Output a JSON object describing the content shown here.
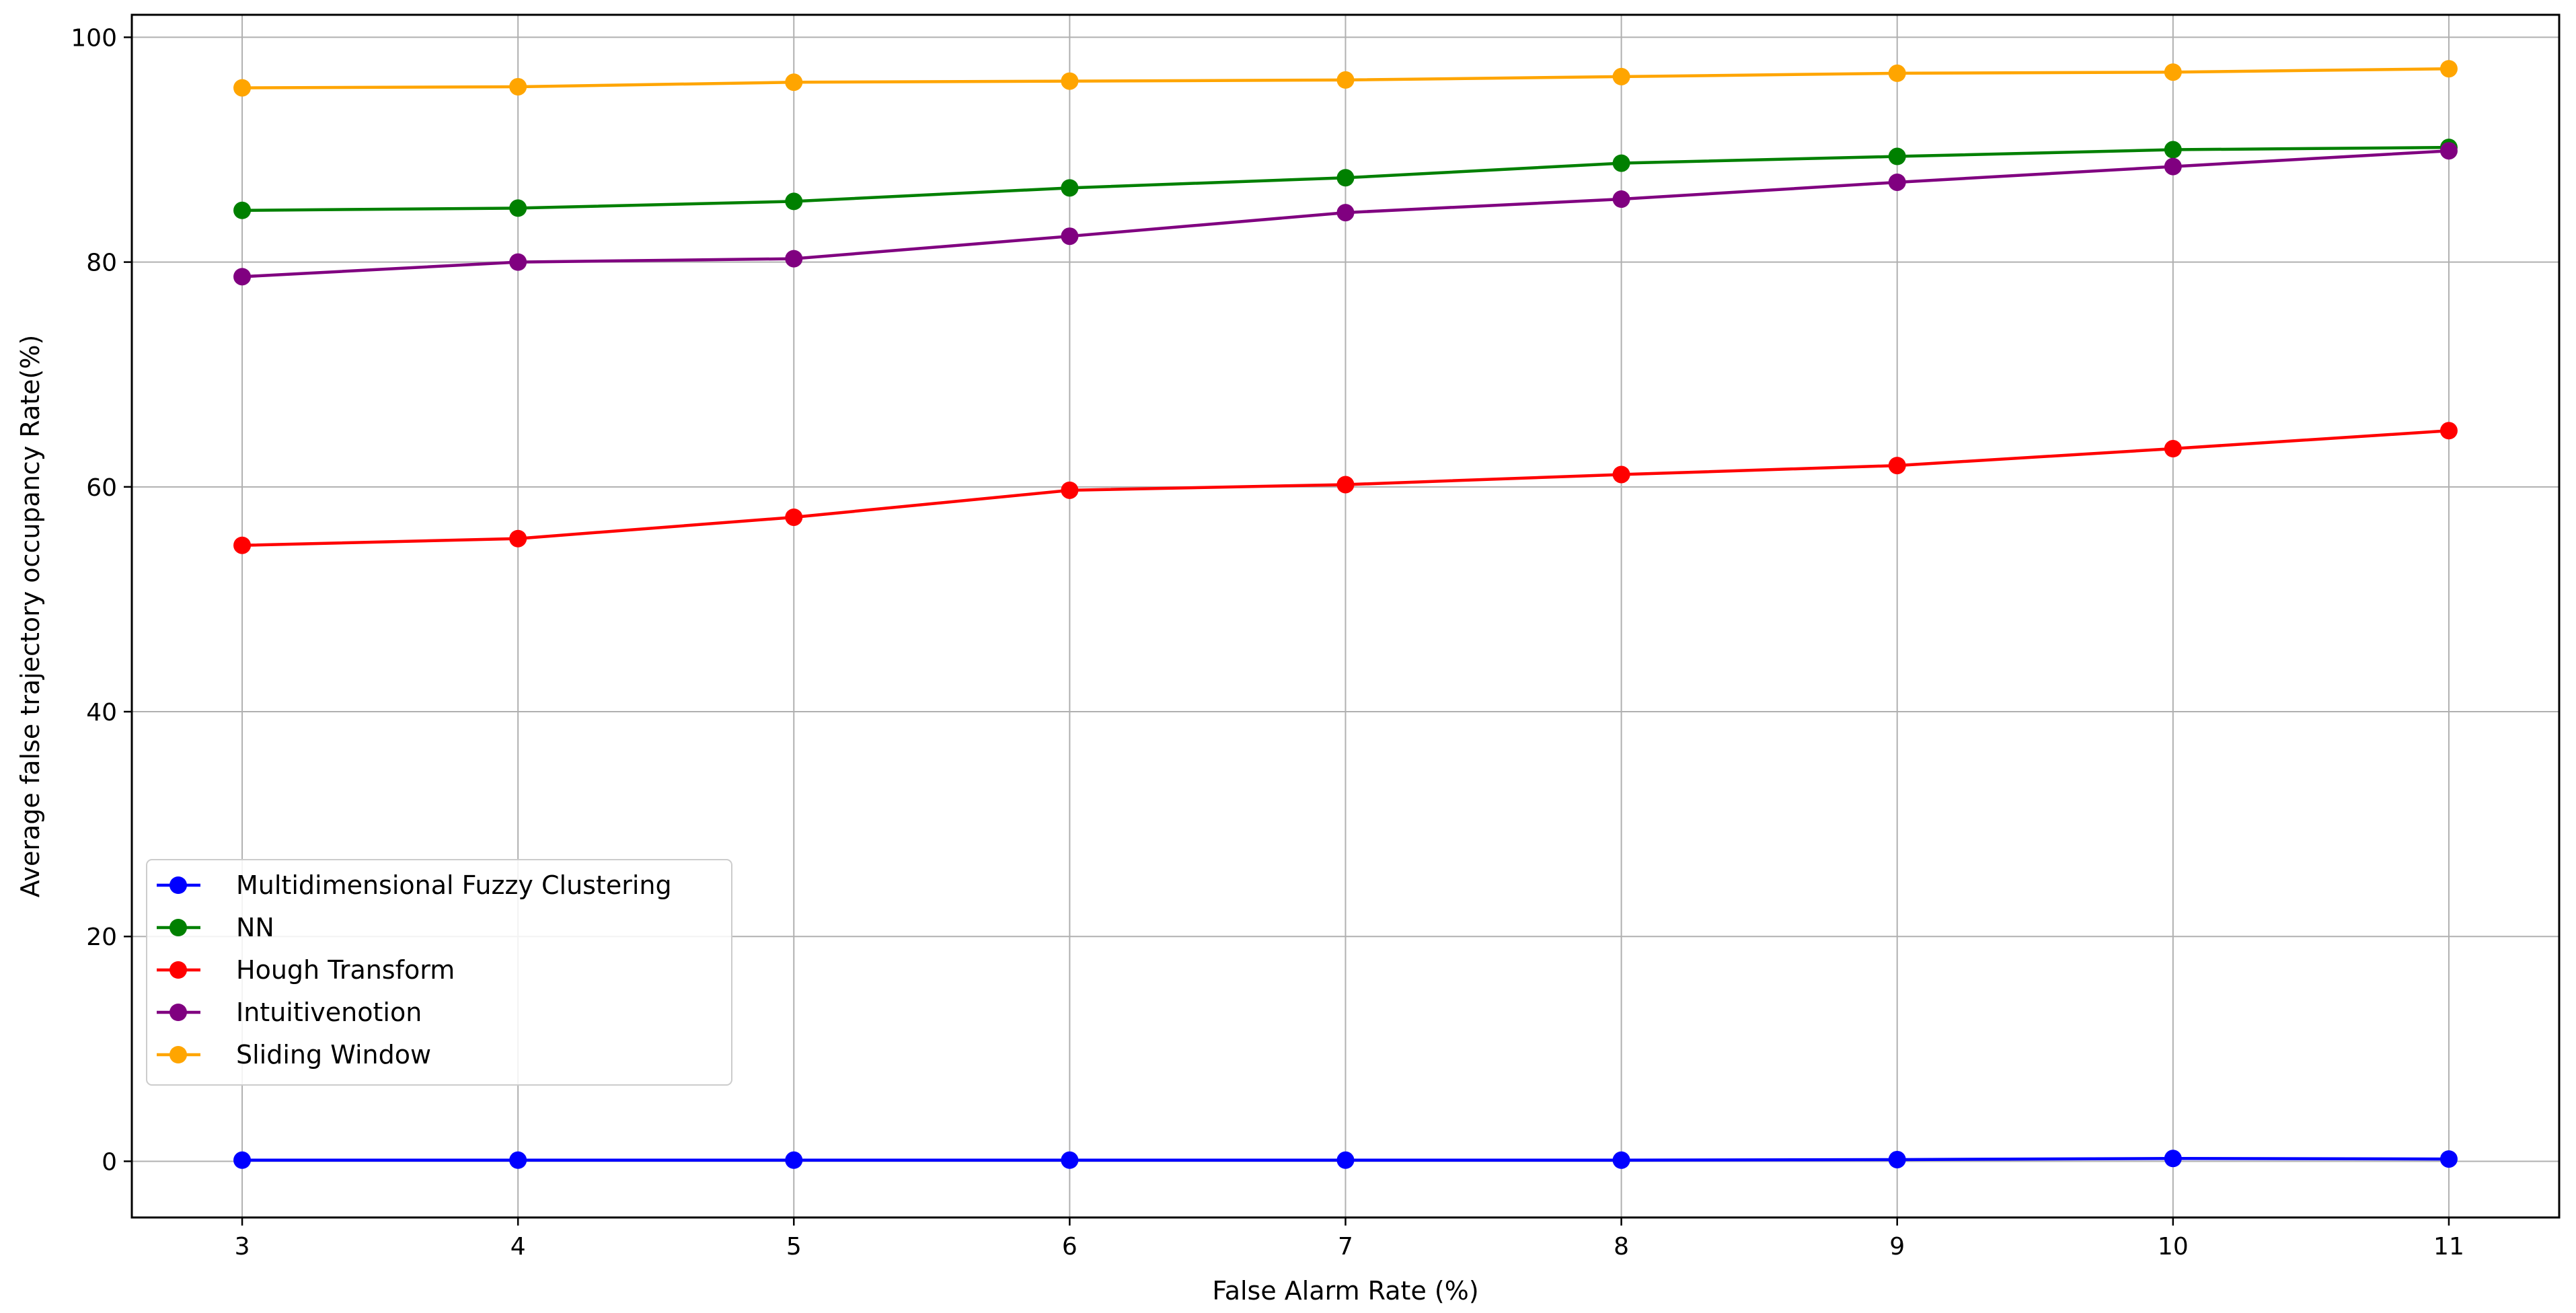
{
  "chart_data": {
    "type": "line",
    "title": "",
    "xlabel": "False Alarm Rate (%)",
    "ylabel": "Average false trajectory occupancy Rate(%)",
    "x": [
      3,
      4,
      5,
      6,
      7,
      8,
      9,
      10,
      11
    ],
    "xticks": [
      "3",
      "4",
      "5",
      "6",
      "7",
      "8",
      "9",
      "10",
      "11"
    ],
    "yticks": [
      "0",
      "20",
      "40",
      "60",
      "80",
      "100"
    ],
    "xlim": [
      2.6,
      11.4
    ],
    "ylim": [
      -5,
      102
    ],
    "grid": true,
    "legend_position": "center-left",
    "series": [
      {
        "name": "Multidimensional Fuzzy Clustering",
        "color": "#0000ff",
        "values": [
          0.1,
          0.1,
          0.1,
          0.1,
          0.1,
          0.1,
          0.15,
          0.25,
          0.2
        ]
      },
      {
        "name": "NN",
        "color": "#008000",
        "values": [
          84.6,
          84.8,
          85.4,
          86.6,
          87.5,
          88.8,
          89.4,
          90.0,
          90.2
        ]
      },
      {
        "name": "Hough Transform",
        "color": "#ff0000",
        "values": [
          54.8,
          55.4,
          57.3,
          59.7,
          60.2,
          61.1,
          61.9,
          63.4,
          65.0
        ]
      },
      {
        "name": "Intuitivenotion",
        "color": "#800080",
        "values": [
          78.7,
          80.0,
          80.3,
          82.3,
          84.4,
          85.6,
          87.1,
          88.5,
          89.9
        ]
      },
      {
        "name": "Sliding Window",
        "color": "#ffa500",
        "values": [
          95.5,
          95.6,
          96.0,
          96.1,
          96.2,
          96.5,
          96.8,
          96.9,
          97.2
        ]
      }
    ]
  }
}
